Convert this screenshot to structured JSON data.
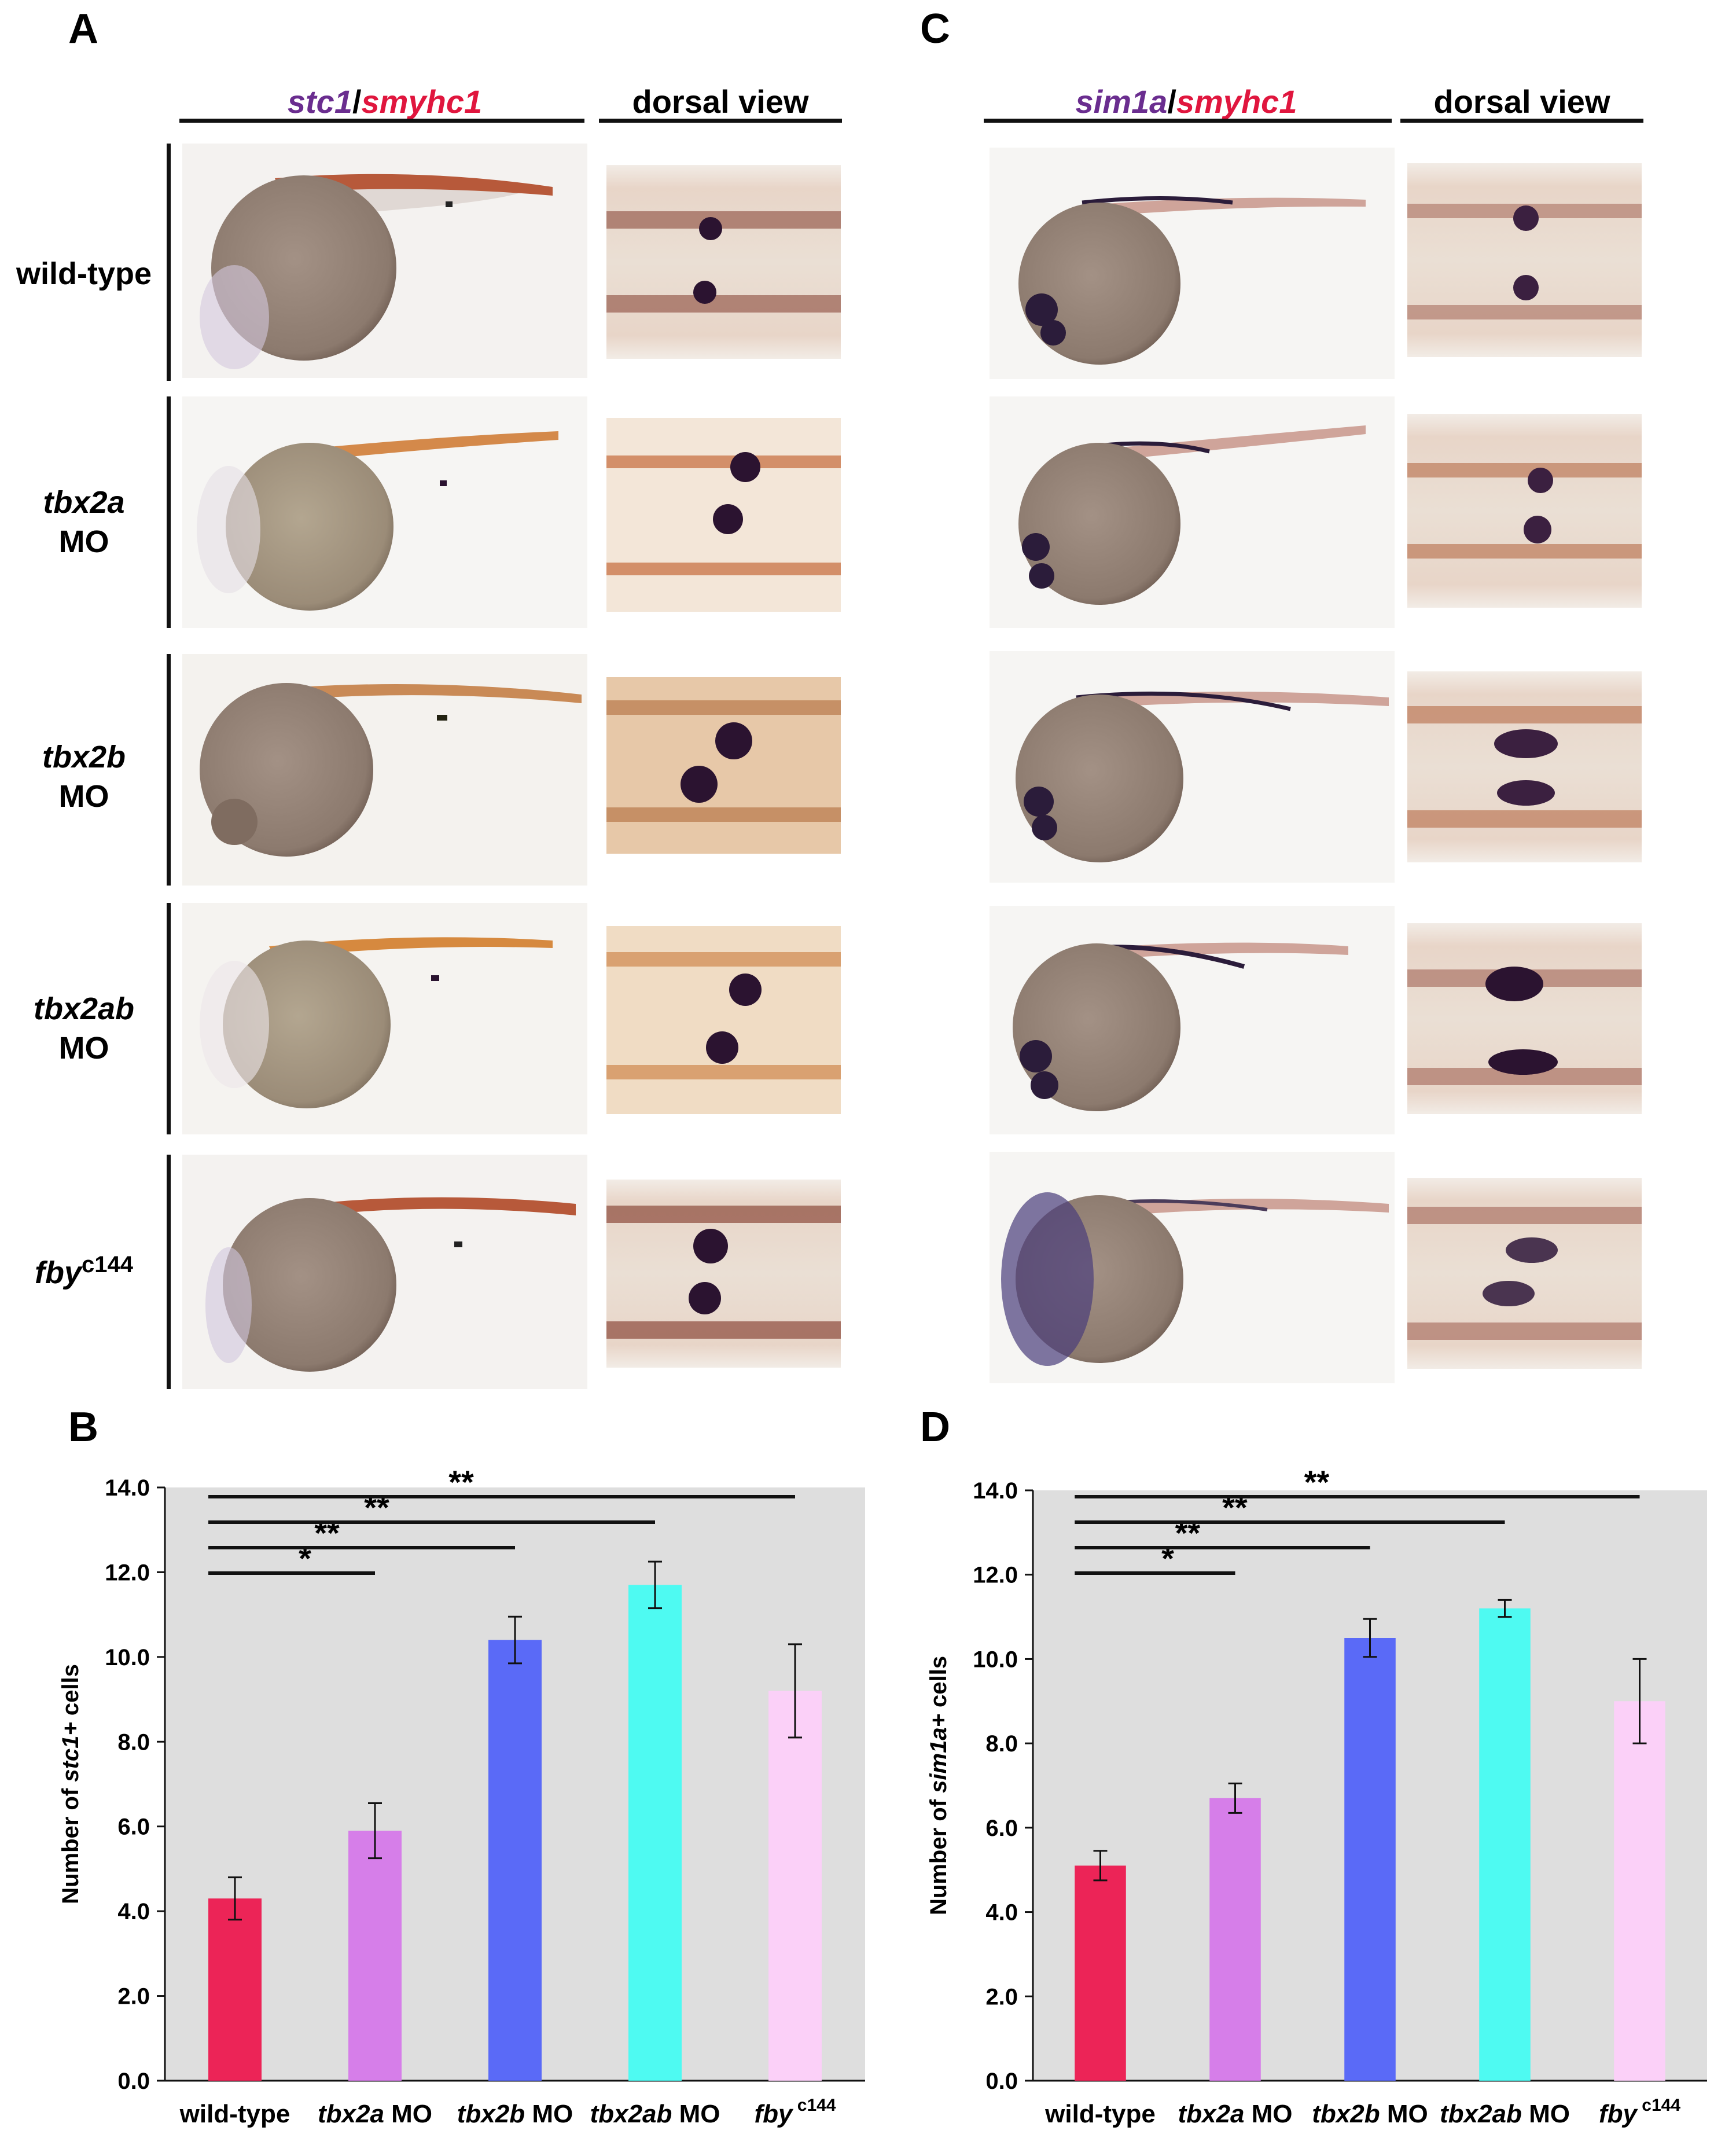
{
  "panel_letters": {
    "a": "A",
    "b": "B",
    "c": "C",
    "d": "D"
  },
  "panel_a": {
    "header_gene1": "stc1",
    "header_sep": "/",
    "header_gene2": "smyhc1",
    "header_dorsal": "dorsal view"
  },
  "panel_c": {
    "header_gene1": "sim1a",
    "header_sep": "/",
    "header_gene2": "smyhc1",
    "header_dorsal": "dorsal view"
  },
  "row_labels": [
    {
      "line1": "wild-type",
      "line2": ""
    },
    {
      "line1": "tbx2a",
      "line2": "MO"
    },
    {
      "line1": "tbx2b",
      "line2": "MO"
    },
    {
      "line1": "tbx2ab",
      "line2": "MO"
    },
    {
      "line1": "fby",
      "sup": "c144"
    }
  ],
  "colors": {
    "wild_type": "#ec2457",
    "tbx2a": "#d67ee9",
    "tbx2b": "#5a6af7",
    "tbx2ab": "#4efaf2",
    "fby": "#fbd0f8",
    "plot_bg": "#dedede"
  },
  "chart_data": [
    {
      "type": "bar",
      "panel": "B",
      "ylabel_prefix": "Number of ",
      "ylabel_gene": "stc1+",
      "ylabel_suffix": " cells",
      "ylim": [
        0,
        14
      ],
      "yticks": [
        "0.0",
        "2.0",
        "4.0",
        "6.0",
        "8.0",
        "10.0",
        "12.0",
        "14.0"
      ],
      "categories": [
        {
          "gene": "",
          "rest": "wild-type",
          "sup": ""
        },
        {
          "gene": "tbx2a",
          "rest": " MO",
          "sup": ""
        },
        {
          "gene": "tbx2b",
          "rest": " MO",
          "sup": ""
        },
        {
          "gene": "tbx2ab",
          "rest": " MO",
          "sup": ""
        },
        {
          "gene": "fby",
          "rest": "",
          "sup": "c144"
        }
      ],
      "values": [
        4.3,
        5.9,
        10.4,
        11.7,
        9.2
      ],
      "errors": [
        0.5,
        0.65,
        0.55,
        0.55,
        1.1
      ],
      "significance": [
        {
          "from": 0,
          "to": 1,
          "label": "*"
        },
        {
          "from": 0,
          "to": 2,
          "label": "**"
        },
        {
          "from": 0,
          "to": 3,
          "label": "**"
        },
        {
          "from": 0,
          "to": 4,
          "label": "**"
        }
      ]
    },
    {
      "type": "bar",
      "panel": "D",
      "ylabel_prefix": "Number of ",
      "ylabel_gene": "sim1a+",
      "ylabel_suffix": " cells",
      "ylim": [
        0,
        14
      ],
      "yticks": [
        "0.0",
        "2.0",
        "4.0",
        "6.0",
        "8.0",
        "10.0",
        "12.0",
        "14.0"
      ],
      "categories": [
        {
          "gene": "",
          "rest": "wild-type",
          "sup": ""
        },
        {
          "gene": "tbx2a",
          "rest": " MO",
          "sup": ""
        },
        {
          "gene": "tbx2b",
          "rest": " MO",
          "sup": ""
        },
        {
          "gene": "tbx2ab",
          "rest": " MO",
          "sup": ""
        },
        {
          "gene": "fby",
          "rest": "",
          "sup": "c144"
        }
      ],
      "values": [
        5.1,
        6.7,
        10.5,
        11.2,
        9.0
      ],
      "errors": [
        0.35,
        0.35,
        0.45,
        0.2,
        1.0
      ],
      "significance": [
        {
          "from": 0,
          "to": 1,
          "label": "*"
        },
        {
          "from": 0,
          "to": 2,
          "label": "**"
        },
        {
          "from": 0,
          "to": 3,
          "label": "**"
        },
        {
          "from": 0,
          "to": 4,
          "label": "**"
        }
      ]
    }
  ]
}
